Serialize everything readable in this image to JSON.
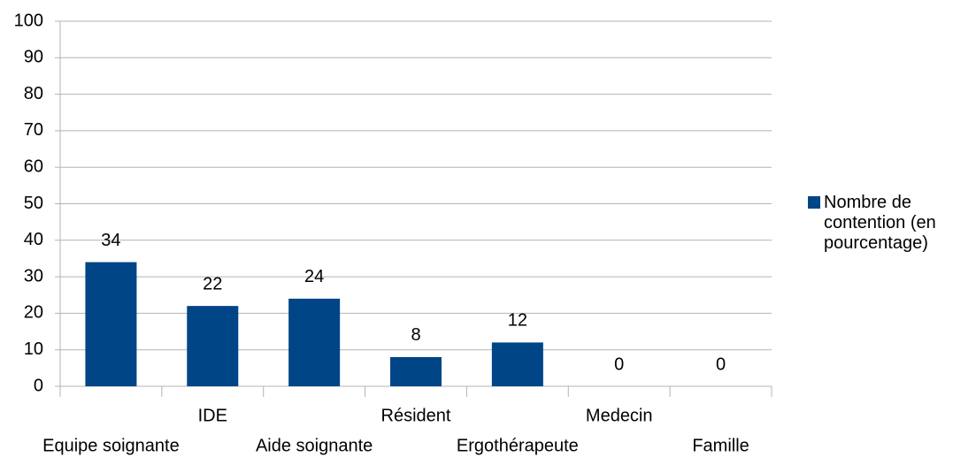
{
  "chart_data": {
    "type": "bar",
    "categories": [
      "Equipe soignante",
      "IDE",
      "Aide soignante",
      "Résident",
      "Ergothérapeute",
      "Medecin",
      "Famille"
    ],
    "series": [
      {
        "name": "Nombre de contention (en pourcentage)",
        "color": "#004586",
        "values": [
          34,
          22,
          24,
          8,
          12,
          0,
          0
        ]
      }
    ],
    "ylim": [
      0,
      100
    ],
    "yticks": [
      0,
      10,
      20,
      30,
      40,
      50,
      60,
      70,
      80,
      90,
      100
    ],
    "grid": true,
    "legend": "right"
  }
}
